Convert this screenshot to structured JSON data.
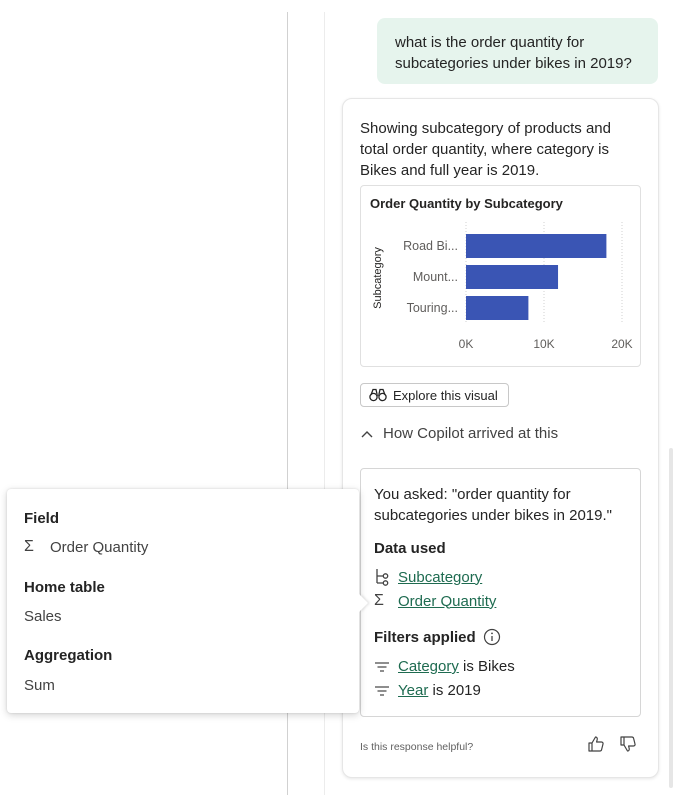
{
  "conversation": {
    "user_message": "what is the order quantity for subcategories under bikes in 2019?"
  },
  "response": {
    "text": "Showing subcategory of products and total order quantity, where category is Bikes and full year is 2019.",
    "explore_label": "Explore this visual",
    "how_label": "How Copilot arrived at this",
    "how": {
      "you_asked": "You asked: \"order quantity for subcategories under bikes in 2019.\"",
      "data_used_heading": "Data used",
      "data_used": [
        {
          "icon": "hierarchy-icon",
          "label": "Subcategory"
        },
        {
          "icon": "sigma-icon",
          "label": "Order Quantity"
        }
      ],
      "filters_heading": "Filters applied",
      "filters": [
        {
          "field": "Category",
          "rest": " is Bikes"
        },
        {
          "field": "Year",
          "rest": " is 2019"
        }
      ]
    },
    "helpful_text": "Is this response helpful?"
  },
  "chart_data": {
    "type": "bar",
    "orientation": "horizontal",
    "title": "Order Quantity by Subcategory",
    "xlabel": "",
    "ylabel": "Subcategory",
    "categories": [
      "Road Bi...",
      "Mount...",
      "Touring..."
    ],
    "values": [
      18000,
      11800,
      8000
    ],
    "xlim": [
      0,
      20000
    ],
    "x_ticks": [
      "0K",
      "10K",
      "20K"
    ],
    "bar_color": "#3a55b4",
    "grid": "vertical dotted"
  },
  "popover": {
    "field_heading": "Field",
    "field_value": "Order Quantity",
    "home_table_heading": "Home table",
    "home_table_value": "Sales",
    "aggregation_heading": "Aggregation",
    "aggregation_value": "Sum"
  },
  "colors": {
    "user_bubble": "#e6f4ed",
    "link": "#1e6b50",
    "bar": "#3a55b4"
  }
}
